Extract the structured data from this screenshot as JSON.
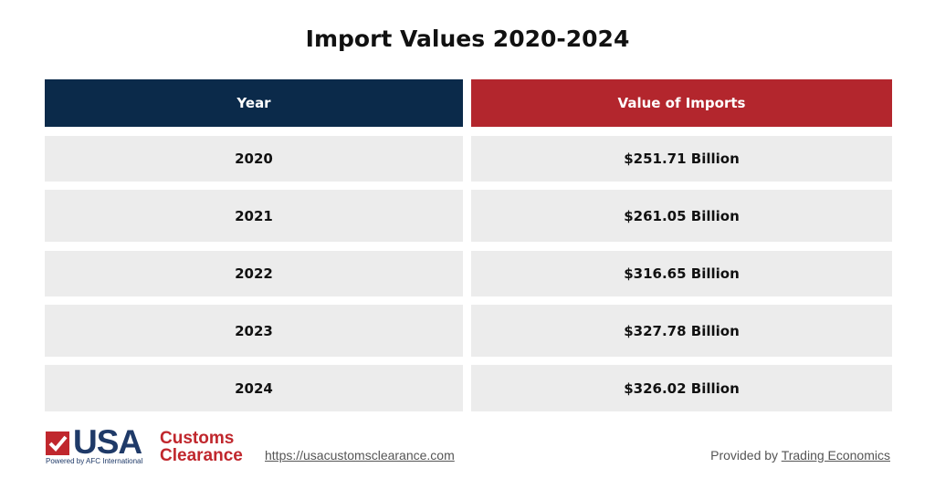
{
  "header": {
    "title": "Import Values 2020-2024"
  },
  "table": {
    "columns": [
      "Year",
      "Value of Imports"
    ],
    "rows": [
      [
        "2020",
        "$251.71 Billion"
      ],
      [
        "2021",
        "$261.05 Billion"
      ],
      [
        "2022",
        "$316.65 Billion"
      ],
      [
        "2023",
        "$327.78 Billion"
      ],
      [
        "2024",
        "$326.02 Billion"
      ]
    ]
  },
  "footer": {
    "logo": {
      "main": "USA",
      "line1": "Customs",
      "line2": "Clearance",
      "tagline": "Powered by AFC International"
    },
    "url": "https://usacustomsclearance.com",
    "credit_prefix": "Provided by",
    "credit_link": "Trading Economics"
  }
}
